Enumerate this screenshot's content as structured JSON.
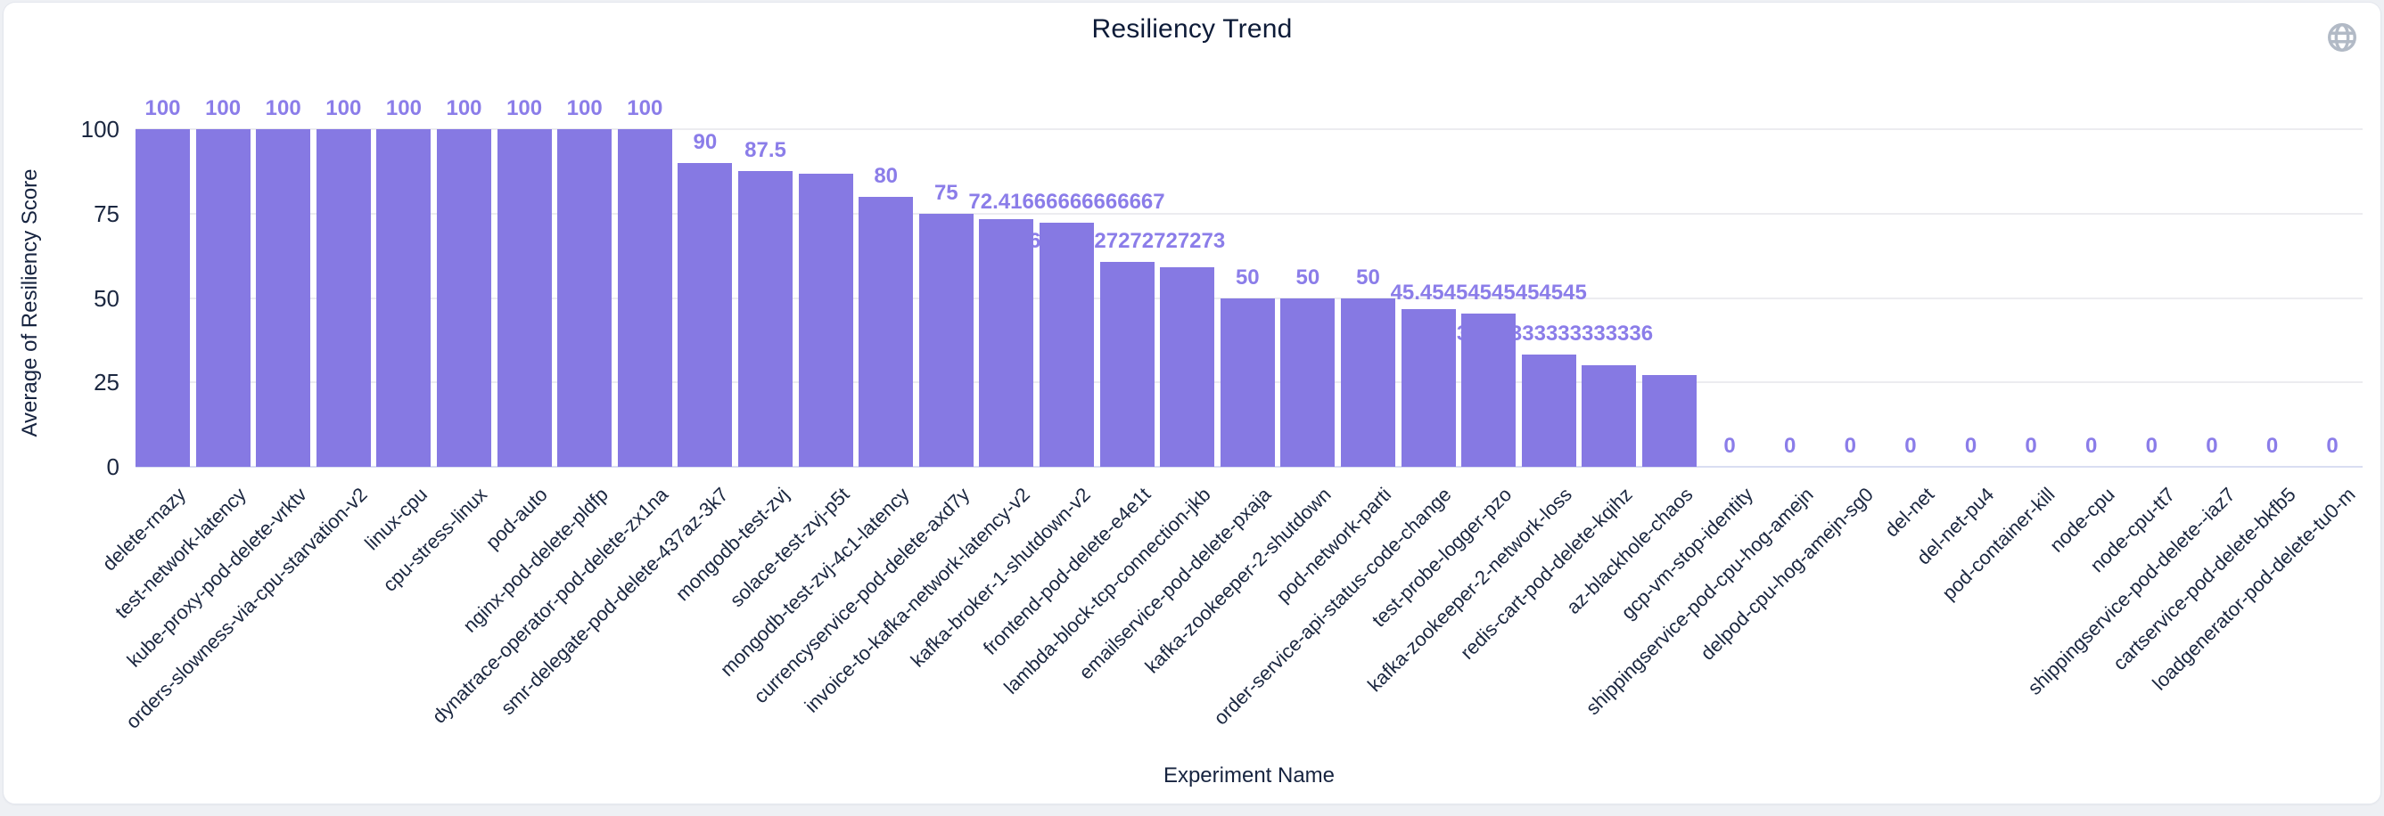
{
  "chart_data": {
    "type": "bar",
    "title": "Resiliency Trend",
    "xlabel": "Experiment Name",
    "ylabel": "Average of Resiliency Score",
    "ylim": [
      0,
      100
    ],
    "yticks": [
      0,
      25,
      50,
      75,
      100
    ],
    "grid": true,
    "legend_position": "none",
    "bar_color": "#8679e3",
    "value_label_color": "#8b7de9",
    "axis_text_color": "#1b2740",
    "title_color": "#0d1b38",
    "categories": [
      "delete-rnazy",
      "test-network-latency",
      "kube-proxy-pod-delete-vrktv",
      "orders-slowness-via-cpu-starvation-v2",
      "linux-cpu",
      "cpu-stress-linux",
      "pod-auto",
      "nginx-pod-delete-pldfp",
      "dynatrace-operator-pod-delete-zx1na",
      "smr-delegate-pod-delete-437az-3k7",
      "mongodb-test-zvj",
      "solace-test-zvj-p5t",
      "mongodb-test-zvj-4c1-latency",
      "currencyservice-pod-delete-axd7y",
      "invoice-to-kafka-network-latency-v2",
      "kafka-broker-1-shutdown-v2",
      "frontend-pod-delete-e4e1t",
      "lambda-block-tcp-connection-jkb",
      "emailservice-pod-delete-pxaja",
      "kafka-zookeeper-2-shutdown",
      "pod-network-parti",
      "order-service-api-status-code-change",
      "test-probe-logger-pzo",
      "kafka-zookeeper-2-network-loss",
      "redis-cart-pod-delete-kqihz",
      "az-blackhole-chaos",
      "gcp-vm-stop-identity",
      "shippingservice-pod-cpu-hog-amejn",
      "delpod-cpu-hog-amejn-sg0",
      "del-net",
      "del-net-pu4",
      "pod-container-kill",
      "node-cpu",
      "node-cpu-tt7",
      "shippingservice-pod-delete--iaz7",
      "cartservice-pod-delete-bkfb5",
      "loadgenerator-pod-delete-tu0-m"
    ],
    "values": [
      100,
      100,
      100,
      100,
      100,
      100,
      100,
      100,
      100,
      90,
      87.5,
      86.9,
      80,
      75,
      73.3,
      72.41666666666667,
      60.72727272727273,
      59.1,
      50,
      50,
      50,
      46.7,
      45.45454545454545,
      33.333333333333336,
      30,
      27.3,
      0,
      0,
      0,
      0,
      0,
      0,
      0,
      0,
      0,
      0,
      0
    ],
    "value_labels": [
      "100",
      "100",
      "100",
      "100",
      "100",
      "100",
      "100",
      "100",
      "100",
      "90",
      "87.5",
      "",
      "80",
      "75",
      "",
      "72.41666666666667",
      "60.72727272727273",
      "",
      "50",
      "50",
      "50",
      "",
      "45.45454545454545",
      "33.333333333333336",
      "",
      "",
      "0",
      "0",
      "0",
      "0",
      "0",
      "0",
      "0",
      "0",
      "0",
      "0",
      "0"
    ]
  }
}
